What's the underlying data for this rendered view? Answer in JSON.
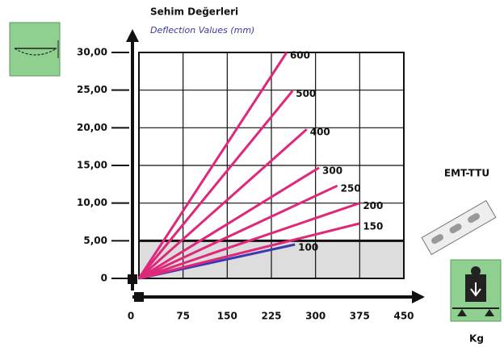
{
  "chart_data": {
    "type": "line",
    "title": "Sehim Değerleri",
    "subtitle": "Deflection Values (mm)",
    "product": "EMT-TTU",
    "unit": "Kg",
    "xlim": [
      0,
      450
    ],
    "xticks": [
      0,
      75,
      150,
      225,
      300,
      375,
      450
    ],
    "ylim": [
      0,
      30
    ],
    "yticks": [
      0,
      {
        "value": 5,
        "label": "5,00"
      },
      {
        "value": 10,
        "label": "10,00"
      },
      {
        "value": 15,
        "label": "15,00"
      },
      {
        "value": 20,
        "label": "20,00"
      },
      {
        "value": 25,
        "label": "25,00"
      },
      {
        "value": 30,
        "label": "30,00"
      }
    ],
    "grid": true,
    "threshold": 5,
    "series": [
      {
        "name": "100",
        "color": "#3b3bb0",
        "x": [
          0,
          265
        ],
        "values": [
          0,
          4.5
        ]
      },
      {
        "name": "150",
        "color": "#e0287a",
        "x": [
          0,
          375
        ],
        "values": [
          0,
          7.3
        ]
      },
      {
        "name": "200",
        "color": "#e0287a",
        "x": [
          0,
          375
        ],
        "values": [
          0,
          10
        ]
      },
      {
        "name": "250",
        "color": "#e0287a",
        "x": [
          0,
          337
        ],
        "values": [
          0,
          12.3
        ]
      },
      {
        "name": "300",
        "color": "#e0287a",
        "x": [
          0,
          306
        ],
        "values": [
          0,
          14.7
        ]
      },
      {
        "name": "400",
        "color": "#e0287a",
        "x": [
          0,
          285
        ],
        "values": [
          0,
          19.8
        ]
      },
      {
        "name": "500",
        "color": "#e0287a",
        "x": [
          0,
          261
        ],
        "values": [
          0,
          24.9
        ]
      },
      {
        "name": "600",
        "color": "#e0287a",
        "x": [
          0,
          251
        ],
        "values": [
          0,
          30
        ]
      }
    ]
  }
}
